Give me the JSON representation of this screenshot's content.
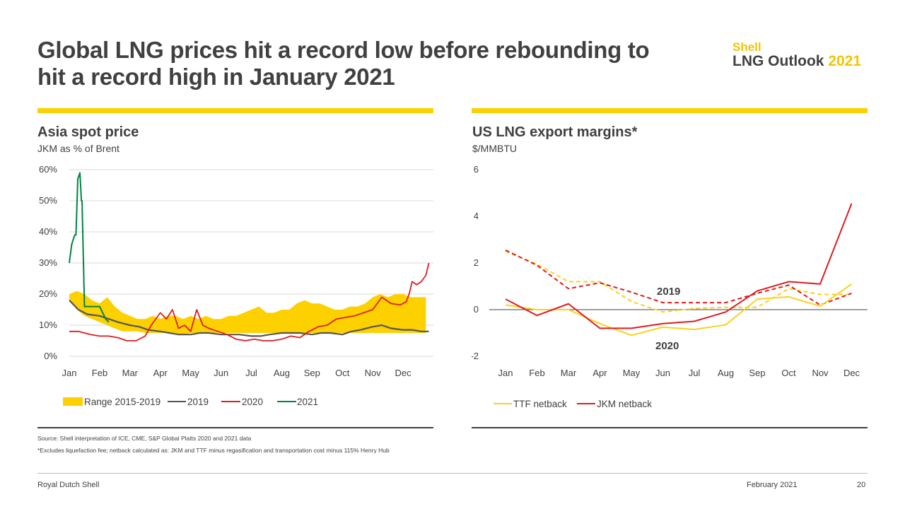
{
  "page": {
    "title": "Global LNG prices hit a record low before rebounding to hit a record high in January 2021",
    "brand": {
      "shell": "Shell",
      "outlook": "LNG Outlook",
      "year": "2021"
    },
    "footnotes": [
      "Source: Shell interpretation of ICE, CME, S&P Global Platts 2020 and 2021 data",
      "*Excludes liquefaction fee; netback calculated as: JKM and TTF minus regasification and transportation cost minus 115% Henry Hub"
    ],
    "footer": {
      "company": "Royal Dutch Shell",
      "date": "February 2021",
      "page_number": "20"
    }
  },
  "colors": {
    "yellow": "#fdd000",
    "dark_grey": "#555555",
    "red": "#dd1d21",
    "green": "#008443",
    "light_yellow": "#f9d21f"
  },
  "chart_data": [
    {
      "type": "area",
      "title": "Asia spot price",
      "ylabel": "JKM as % of Brent",
      "ylim": [
        0,
        60
      ],
      "y_ticks": [
        0,
        10,
        20,
        30,
        40,
        50,
        60
      ],
      "y_tick_labels": [
        "0%",
        "10%",
        "20%",
        "30%",
        "40%",
        "50%",
        "60%"
      ],
      "grid": true,
      "xlim": [
        0,
        12
      ],
      "categories": [
        "Jan",
        "Feb",
        "Mar",
        "Apr",
        "May",
        "Jun",
        "Jul",
        "Aug",
        "Sep",
        "Oct",
        "Nov",
        "Dec"
      ],
      "range": {
        "name": "Range 2015-2019",
        "x": [
          0,
          0.25,
          0.5,
          0.75,
          1.0,
          1.25,
          1.5,
          1.75,
          2.0,
          2.25,
          2.5,
          2.75,
          3.0,
          3.25,
          3.5,
          3.75,
          4.0,
          4.25,
          4.5,
          4.75,
          5.0,
          5.25,
          5.5,
          5.75,
          6.0,
          6.25,
          6.5,
          6.75,
          7.0,
          7.25,
          7.5,
          7.75,
          8.0,
          8.25,
          8.5,
          8.75,
          9.0,
          9.25,
          9.5,
          9.75,
          10.0,
          10.25,
          10.5,
          10.75,
          11.0,
          11.25,
          11.5,
          11.75
        ],
        "upper": [
          20,
          21,
          20,
          18,
          17,
          19,
          16,
          14,
          13,
          12,
          12,
          13,
          12,
          13,
          13,
          12,
          13,
          12,
          13,
          12,
          12,
          13,
          13,
          14,
          15,
          16,
          14,
          14,
          15,
          15,
          17,
          18,
          17,
          17,
          16,
          15,
          15,
          16,
          16,
          17,
          19,
          20,
          19,
          20,
          20,
          19,
          19,
          19
        ],
        "lower": [
          18,
          15,
          13,
          12,
          11,
          10,
          9,
          8,
          8,
          8,
          7.5,
          7.5,
          7.5,
          7.5,
          7,
          7,
          7.5,
          7.5,
          7.5,
          7.5,
          7.5,
          7.5,
          7.5,
          7.5,
          7.5,
          7.5,
          7.5,
          7.5,
          7.5,
          7.5,
          7.5,
          7.5,
          7.5,
          7.5,
          7.5,
          7.5,
          7.5,
          7.5,
          7.5,
          7.5,
          7.5,
          7.5,
          7.5,
          7.5,
          7.5,
          7.5,
          7.5,
          7.5
        ]
      },
      "series": [
        {
          "name": "2019",
          "x": [
            0,
            0.3,
            0.6,
            1.0,
            1.3,
            1.6,
            2.0,
            2.3,
            2.6,
            3.0,
            3.3,
            3.6,
            4.0,
            4.3,
            4.6,
            5.0,
            5.3,
            5.6,
            6.0,
            6.3,
            6.6,
            7.0,
            7.3,
            7.6,
            8.0,
            8.3,
            8.6,
            9.0,
            9.3,
            9.6,
            10.0,
            10.3,
            10.6,
            11.0,
            11.3,
            11.6,
            11.85
          ],
          "values": [
            18,
            15,
            13.5,
            13,
            12,
            11,
            10,
            9.5,
            8.5,
            8,
            7.5,
            7,
            7,
            7.5,
            7.5,
            7,
            7,
            7,
            6.5,
            6.5,
            7,
            7.5,
            7.5,
            7.5,
            7,
            7.5,
            7.5,
            7,
            8,
            8.5,
            9.5,
            10,
            9,
            8.5,
            8.5,
            8,
            8
          ]
        },
        {
          "name": "2020",
          "x": [
            0,
            0.3,
            0.5,
            0.7,
            1.0,
            1.3,
            1.6,
            1.9,
            2.2,
            2.5,
            2.7,
            3.0,
            3.2,
            3.4,
            3.6,
            3.8,
            4.0,
            4.2,
            4.4,
            4.6,
            4.9,
            5.2,
            5.5,
            5.8,
            6.1,
            6.4,
            6.7,
            7.0,
            7.3,
            7.6,
            7.9,
            8.2,
            8.5,
            8.8,
            9.1,
            9.4,
            9.7,
            10.0,
            10.3,
            10.6,
            10.9,
            11.1,
            11.2,
            11.3,
            11.45,
            11.6,
            11.75,
            11.85
          ],
          "values": [
            8,
            8,
            7.5,
            7,
            6.5,
            6.5,
            6,
            5,
            5,
            6.5,
            10,
            14,
            12,
            15,
            9,
            10,
            8,
            15,
            10,
            9,
            8,
            7,
            5.5,
            5,
            5.5,
            5,
            5,
            5.5,
            6.5,
            6,
            8,
            9.5,
            10,
            12,
            12.5,
            13,
            14,
            15,
            19,
            17,
            16.5,
            17.5,
            20,
            24,
            23,
            24,
            26,
            30
          ]
        },
        {
          "name": "2021",
          "x": [
            0,
            0.08,
            0.18,
            0.22,
            0.28,
            0.35,
            0.4,
            0.42,
            0.5,
            0.55,
            0.6,
            0.8,
            1.0,
            1.2,
            1.3
          ],
          "values": [
            30,
            36,
            39,
            39,
            57,
            59,
            50,
            50,
            16,
            16,
            16,
            16,
            16,
            12,
            11
          ]
        }
      ],
      "legend": [
        "Range 2015-2019",
        "2019",
        "2020",
        "2021"
      ]
    },
    {
      "type": "line",
      "title": "US LNG export margins*",
      "ylabel": "$/MMBTU",
      "ylim": [
        -2,
        6
      ],
      "y_ticks": [
        -2,
        0,
        2,
        4,
        6
      ],
      "grid": false,
      "categories": [
        "Jan",
        "Feb",
        "Mar",
        "Apr",
        "May",
        "Jun",
        "Jul",
        "Aug",
        "Sep",
        "Oct",
        "Nov",
        "Dec"
      ],
      "series": [
        {
          "name": "TTF netback 2020",
          "legend_label": "TTF netback",
          "style": "solid",
          "values": [
            0.2,
            0.0,
            0.0,
            -0.6,
            -1.1,
            -0.75,
            -0.85,
            -0.65,
            0.45,
            0.55,
            0.15,
            1.1
          ]
        },
        {
          "name": "JKM netback 2020",
          "legend_label": "JKM netback",
          "style": "solid",
          "values": [
            0.45,
            -0.25,
            0.25,
            -0.8,
            -0.8,
            -0.6,
            -0.5,
            -0.1,
            0.8,
            1.2,
            1.1,
            4.55
          ]
        },
        {
          "name": "TTF netback 2019",
          "style": "dashed",
          "values": [
            2.5,
            1.95,
            1.2,
            1.2,
            0.35,
            -0.1,
            0.05,
            0.1,
            0.1,
            0.9,
            0.65,
            0.65
          ]
        },
        {
          "name": "JKM netback 2019",
          "style": "dashed",
          "values": [
            2.55,
            1.9,
            0.9,
            1.15,
            0.75,
            0.3,
            0.3,
            0.3,
            0.7,
            1.05,
            0.2,
            0.7
          ]
        }
      ],
      "annotations": [
        "2019",
        "2020"
      ],
      "legend": [
        "TTF netback",
        "JKM netback"
      ]
    }
  ]
}
